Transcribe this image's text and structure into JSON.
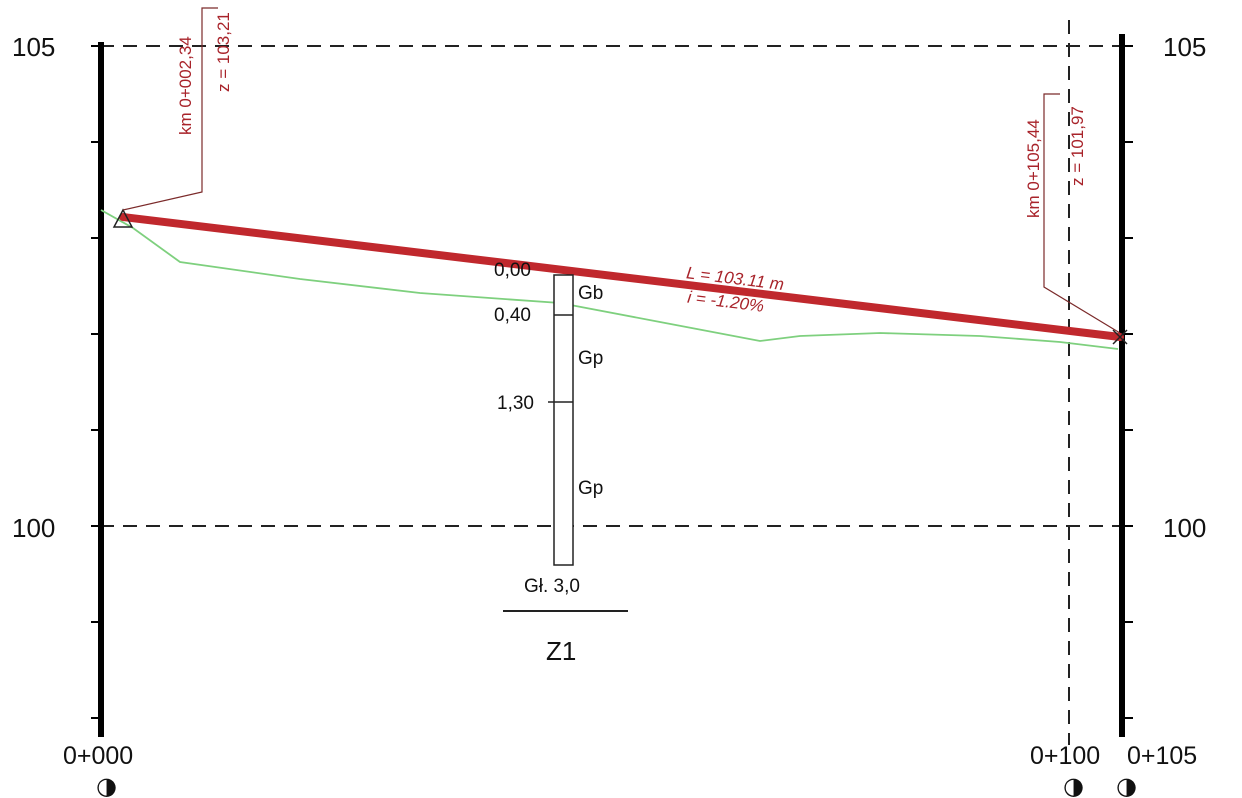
{
  "elevation_axis": {
    "labels_left": [
      "105",
      "100"
    ],
    "labels_right": [
      "105",
      "100"
    ]
  },
  "stations": {
    "start": "0+000",
    "mid": "0+100",
    "end": "0+105",
    "symbol": "◑"
  },
  "pipe": {
    "color": "#c0282d",
    "length_label": "L = 103.11 m",
    "slope_label": "i = -1.20%",
    "start": {
      "km": "km 0+002,34",
      "z": "z = 103,21"
    },
    "end": {
      "km": "km 0+105,44",
      "z": "z = 101,97"
    }
  },
  "terrain": {
    "color": "#7ed07e"
  },
  "borehole": {
    "name": "Z1",
    "depth_label": "Gł. 3,0",
    "layers": [
      {
        "depth_top": "0,00",
        "soil": "Gb"
      },
      {
        "depth_top": "0,40",
        "soil": "Gp"
      },
      {
        "depth_top": "1,30",
        "soil": "Gp"
      }
    ]
  }
}
